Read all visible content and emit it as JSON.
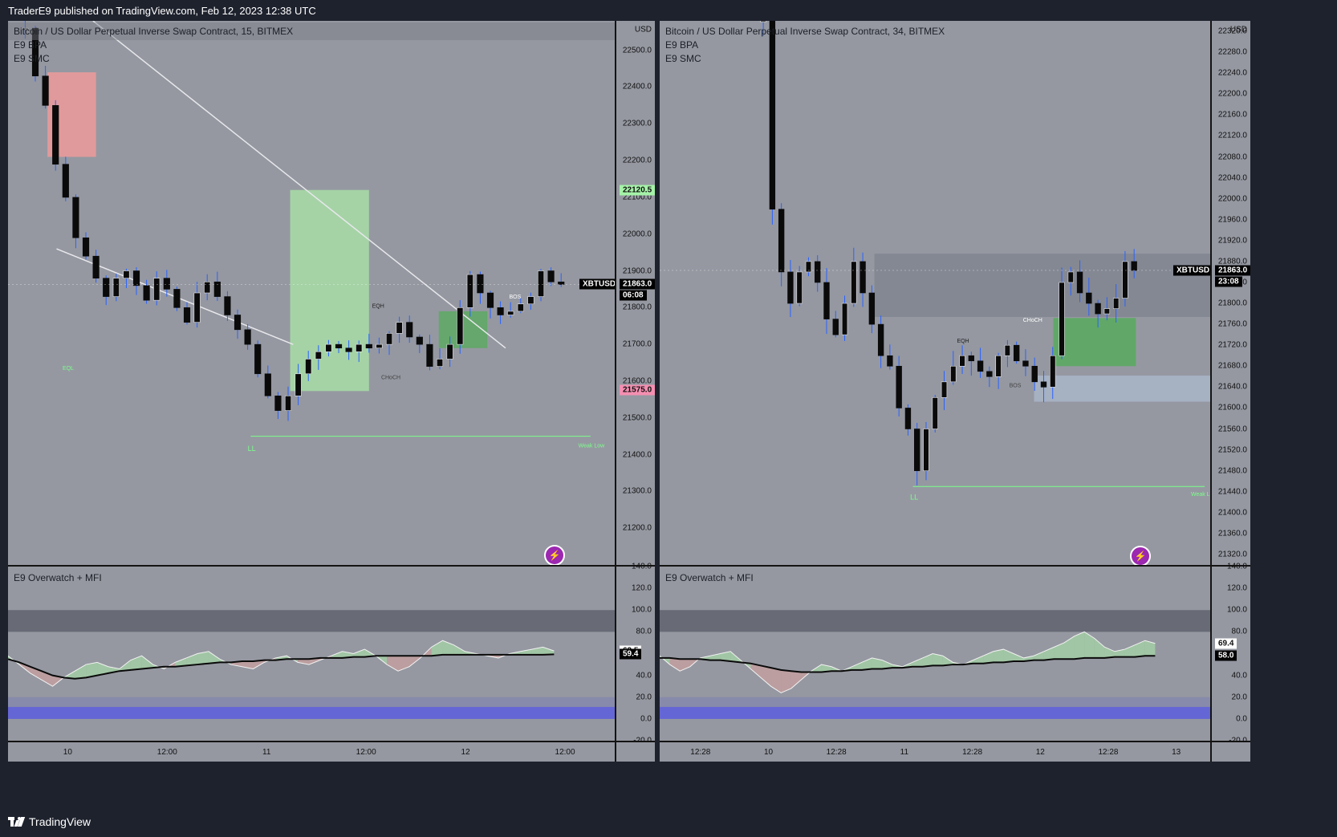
{
  "header": {
    "text": "TraderE9 published on TradingView.com, Feb 12, 2023 12:38 UTC"
  },
  "footer": {
    "brand": "TradingView"
  },
  "colors": {
    "plot_bg": "#9598a1",
    "bull_zone": "#a5d6a7",
    "bear_zone": "#ef9a9a",
    "demand": "#4caf50",
    "supply_gray": "#808490",
    "line": "#ffffff",
    "wick": "#2962ff"
  },
  "left": {
    "symbol_line": "Bitcoin / US Dollar Perpetual Inverse Swap Contract, 15, BITMEX",
    "indicators": [
      "E9 BPA",
      "E9 SMC"
    ],
    "osc_title": "E9 Overwatch + MFI",
    "currency": "USD",
    "price_ticks": [
      "22500.0",
      "22400.0",
      "22300.0",
      "22200.0",
      "22100.0",
      "22000.0",
      "21900.0",
      "21800.0",
      "21700.0",
      "21600.0",
      "21500.0",
      "21400.0",
      "21300.0",
      "21200.0"
    ],
    "osc_ticks": [
      "140.0",
      "120.0",
      "100.0",
      "80.0",
      "40.0",
      "20.0",
      "0.0",
      "-20.0"
    ],
    "time_ticks": [
      "10",
      "12:00",
      "11",
      "12:00",
      "12",
      "12:00"
    ],
    "tag_upper": "22120.5",
    "tag_lower": "21575.0",
    "symbol_tag": "XBTUSD",
    "price_tag": "21863.0",
    "countdown": "06:08",
    "osc_tag_a": "62.5",
    "osc_tag_b": "59.4",
    "labels": {
      "eql": "EQL",
      "eqh": "EQH",
      "choch": "CHoCH",
      "bos": "BOS",
      "ll": "LL",
      "weak_low": "Weak Low"
    }
  },
  "right": {
    "symbol_line": "Bitcoin / US Dollar Perpetual Inverse Swap Contract, 34, BITMEX",
    "indicators": [
      "E9 BPA",
      "E9 SMC"
    ],
    "osc_title": "E9 Overwatch + MFI",
    "currency": "USD",
    "price_ticks": [
      "22320.0",
      "22280.0",
      "22240.0",
      "22200.0",
      "22160.0",
      "22120.0",
      "22080.0",
      "22040.0",
      "22000.0",
      "21960.0",
      "21920.0",
      "21880.0",
      "21840.0",
      "21800.0",
      "21760.0",
      "21720.0",
      "21680.0",
      "21640.0",
      "21600.0",
      "21560.0",
      "21520.0",
      "21480.0",
      "21440.0",
      "21400.0",
      "21360.0",
      "21320.0"
    ],
    "osc_ticks": [
      "140.0",
      "120.0",
      "100.0",
      "80.0",
      "40.0",
      "20.0",
      "0.0",
      "-20.0"
    ],
    "time_ticks": [
      "12:28",
      "10",
      "12:28",
      "11",
      "12:28",
      "12",
      "12:28",
      "13"
    ],
    "symbol_tag": "XBTUSD",
    "price_tag": "21863.0",
    "countdown": "23:08",
    "osc_tag_a": "69.4",
    "osc_tag_b": "58.0",
    "labels": {
      "eqh": "EQH",
      "choch": "CHoCH",
      "bos": "BOS",
      "ll": "LL",
      "weak_low": "Weak L"
    }
  },
  "chart_data": [
    {
      "type": "candlestick",
      "title": "Bitcoin / US Dollar Perpetual Inverse Swap Contract, 15, BITMEX",
      "ylabel": "USD",
      "ylim": [
        21100,
        22580
      ],
      "x": [
        "10",
        "12:00",
        "11",
        "12:00",
        "12",
        "12:00"
      ],
      "close_series": [
        22560,
        22430,
        22350,
        22190,
        22100,
        21990,
        21940,
        21880,
        21830,
        21880,
        21900,
        21860,
        21820,
        21880,
        21850,
        21800,
        21760,
        21840,
        21870,
        21830,
        21780,
        21740,
        21700,
        21620,
        21560,
        21520,
        21560,
        21620,
        21660,
        21680,
        21700,
        21690,
        21680,
        21700,
        21690,
        21700,
        21730,
        21760,
        21720,
        21700,
        21640,
        21660,
        21700,
        21800,
        21890,
        21840,
        21800,
        21780,
        21790,
        21810,
        21830,
        21900,
        21870,
        21863
      ],
      "zones": {
        "bull": [
          21573,
          22120
        ],
        "bear": [
          22210,
          22440
        ],
        "demand": [
          21690,
          21790
        ]
      },
      "markers": {
        "last_price": 21863.0,
        "upper_tag": 22120.5,
        "lower_tag": 21575.0,
        "ll_price": 21450
      }
    },
    {
      "type": "candlestick",
      "title": "Bitcoin / US Dollar Perpetual Inverse Swap Contract, 34, BITMEX",
      "ylabel": "USD",
      "ylim": [
        21300,
        22340
      ],
      "x": [
        "12:28",
        "10",
        "12:28",
        "11",
        "12:28",
        "12",
        "12:28",
        "13"
      ],
      "close_series": [
        22340,
        21980,
        21860,
        21800,
        21860,
        21880,
        21840,
        21770,
        21740,
        21800,
        21880,
        21820,
        21760,
        21700,
        21680,
        21600,
        21560,
        21480,
        21560,
        21620,
        21650,
        21680,
        21700,
        21690,
        21670,
        21660,
        21700,
        21720,
        21690,
        21680,
        21650,
        21640,
        21700,
        21840,
        21860,
        21820,
        21800,
        21780,
        21790,
        21810,
        21880,
        21863
      ],
      "zones": {
        "supply": [
          21774,
          21895
        ],
        "demand": [
          21680,
          21772
        ],
        "lower": [
          21612,
          21662
        ]
      },
      "markers": {
        "last_price": 21863.0,
        "ll_price": 21450
      }
    },
    {
      "type": "line",
      "title": "E9 Overwatch + MFI",
      "ylim": [
        -20,
        140
      ],
      "series": [
        {
          "values": [
            58,
            50,
            42,
            36,
            30,
            38,
            44,
            50,
            52,
            48,
            46,
            54,
            58,
            50,
            46,
            52,
            56,
            60,
            62,
            55,
            50,
            48,
            46,
            52,
            56,
            58,
            52,
            50,
            54,
            58,
            62,
            60,
            64,
            58,
            50,
            44,
            48,
            56,
            66,
            72,
            68,
            62,
            60,
            58,
            56,
            60,
            62,
            64,
            66,
            62.5
          ]
        },
        {
          "values": [
            55,
            52,
            48,
            44,
            40,
            38,
            37,
            38,
            40,
            42,
            44,
            45,
            46,
            47,
            48,
            48,
            49,
            50,
            51,
            52,
            52,
            53,
            53,
            54,
            54,
            55,
            55,
            55,
            56,
            56,
            56,
            57,
            57,
            58,
            58,
            58,
            58,
            58,
            58,
            59,
            59,
            59,
            59,
            59,
            59,
            59,
            59,
            59,
            59,
            59.4
          ]
        }
      ]
    },
    {
      "type": "line",
      "title": "E9 Overwatch + MFI",
      "ylim": [
        -20,
        140
      ],
      "series": [
        {
          "values": [
            58,
            50,
            44,
            48,
            56,
            58,
            60,
            62,
            54,
            46,
            38,
            30,
            24,
            28,
            36,
            44,
            50,
            48,
            44,
            48,
            52,
            56,
            54,
            50,
            48,
            52,
            56,
            60,
            58,
            52,
            50,
            54,
            58,
            62,
            64,
            60,
            56,
            58,
            62,
            66,
            70,
            76,
            80,
            74,
            66,
            62,
            64,
            68,
            72,
            69.4
          ]
        },
        {
          "values": [
            56,
            56,
            55,
            55,
            55,
            54,
            54,
            53,
            52,
            51,
            49,
            47,
            45,
            44,
            43,
            43,
            43,
            44,
            44,
            45,
            45,
            46,
            46,
            47,
            47,
            48,
            48,
            49,
            49,
            50,
            50,
            51,
            51,
            52,
            52,
            53,
            53,
            54,
            54,
            55,
            55,
            55,
            56,
            56,
            56,
            57,
            57,
            57,
            58,
            58.0
          ]
        }
      ]
    }
  ]
}
